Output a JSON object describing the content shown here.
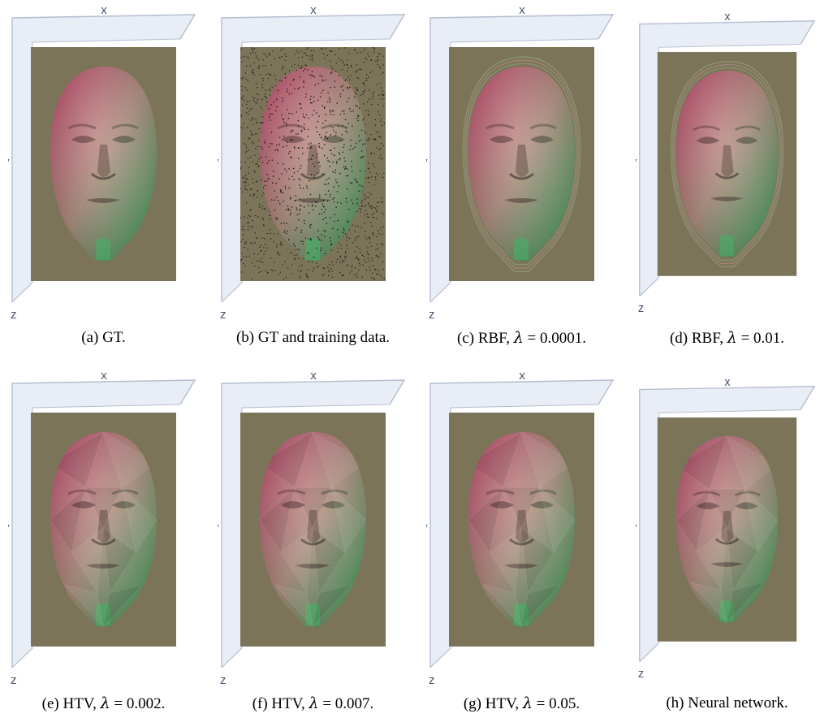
{
  "figure": {
    "axis_labels": {
      "x": "x",
      "y": "y",
      "z": "z"
    },
    "panels": [
      {
        "id": "a",
        "prefix": "(a) ",
        "method": "GT.",
        "lambda": null,
        "overlay": "none"
      },
      {
        "id": "b",
        "prefix": "(b) ",
        "method": "GT and training data.",
        "lambda": null,
        "overlay": "training-points"
      },
      {
        "id": "c",
        "prefix": "(c) ",
        "method": "RBF, ",
        "lambda": "0.0001.",
        "overlay": "ripples"
      },
      {
        "id": "d",
        "prefix": "(d) ",
        "method": "RBF, ",
        "lambda": "0.01.",
        "overlay": "ripples"
      },
      {
        "id": "e",
        "prefix": "(e) ",
        "method": "HTV, ",
        "lambda": "0.002.",
        "overlay": "facets"
      },
      {
        "id": "f",
        "prefix": "(f) ",
        "method": "HTV, ",
        "lambda": "0.007.",
        "overlay": "facets"
      },
      {
        "id": "g",
        "prefix": "(g) ",
        "method": "HTV, ",
        "lambda": "0.05.",
        "overlay": "facets"
      },
      {
        "id": "h",
        "prefix": "(h) ",
        "method": "Neural network.",
        "lambda": null,
        "overlay": "facets"
      }
    ],
    "lambda_symbol": "λ",
    "equals_sign": " = ",
    "colors": {
      "background_plane": "#7c7458",
      "axis_box": "#e9edf6",
      "axis_line": "#b4bdd0",
      "face_red": "#c23a66",
      "face_green": "#3eb86a",
      "face_light": "#b4ae9a"
    }
  }
}
